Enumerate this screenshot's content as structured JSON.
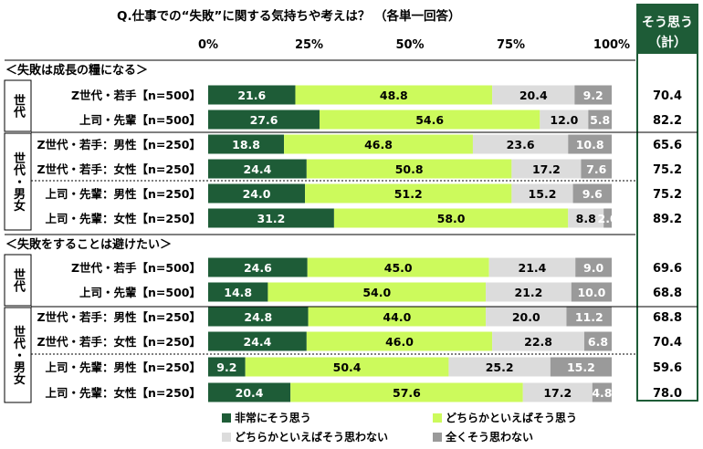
{
  "chart_data": {
    "type": "bar",
    "stacked": true,
    "orientation": "horizontal",
    "title": "Q.仕事での“失敗”に関する気持ちや考えは？ （各単一回答）",
    "ticks": [
      "0%",
      "25%",
      "50%",
      "75%",
      "100%"
    ],
    "xlim": [
      0,
      100
    ],
    "total_header": [
      "そう思う",
      "（計）"
    ],
    "colors": [
      "#1e5c37",
      "#ccfa5c",
      "#dcdcdc",
      "#9a9a9a"
    ],
    "legend": [
      "非常にそう思う",
      "どちらかといえばそう思う",
      "どちらかといえばそう思わない",
      "全くそう思わない"
    ],
    "sections": [
      {
        "title": "＜失敗は成長の糧になる＞",
        "groups": [
          {
            "label": "世代",
            "rows": [
              {
                "label": "Z世代・若手【n=500】",
                "values": [
                  21.6,
                  48.8,
                  20.4,
                  9.2
                ],
                "value_labels": [
                  "21.6",
                  "48.8",
                  "20.4",
                  "9.2"
                ],
                "total": "70.4"
              },
              {
                "label": "上司・先輩【n=500】",
                "values": [
                  27.6,
                  54.6,
                  12.0,
                  5.8
                ],
                "value_labels": [
                  "27.6",
                  "54.6",
                  "12.0",
                  "5.8"
                ],
                "total": "82.2"
              }
            ]
          },
          {
            "label": "世代・男女",
            "rows": [
              {
                "label": "Z世代・若手：男性【n=250】",
                "values": [
                  18.8,
                  46.8,
                  23.6,
                  10.8
                ],
                "value_labels": [
                  "18.8",
                  "46.8",
                  "23.6",
                  "10.8"
                ],
                "total": "65.6"
              },
              {
                "label": "Z世代・若手：女性【n=250】",
                "values": [
                  24.4,
                  50.8,
                  17.2,
                  7.6
                ],
                "value_labels": [
                  "24.4",
                  "50.8",
                  "17.2",
                  "7.6"
                ],
                "total": "75.2"
              },
              {
                "label": "上司・先輩：男性【n=250】",
                "values": [
                  24.0,
                  51.2,
                  15.2,
                  9.6
                ],
                "value_labels": [
                  "24.0",
                  "51.2",
                  "15.2",
                  "9.6"
                ],
                "total": "75.2"
              },
              {
                "label": "上司・先輩：女性【n=250】",
                "values": [
                  31.2,
                  58.0,
                  8.8,
                  2.0
                ],
                "value_labels": [
                  "31.2",
                  "58.0",
                  "8.8",
                  "2.0"
                ],
                "total": "89.2"
              }
            ]
          }
        ]
      },
      {
        "title": "＜失敗をすることは避けたい＞",
        "groups": [
          {
            "label": "世代",
            "rows": [
              {
                "label": "Z世代・若手【n=500】",
                "values": [
                  24.6,
                  45.0,
                  21.4,
                  9.0
                ],
                "value_labels": [
                  "24.6",
                  "45.0",
                  "21.4",
                  "9.0"
                ],
                "total": "69.6"
              },
              {
                "label": "上司・先輩【n=500】",
                "values": [
                  14.8,
                  54.0,
                  21.2,
                  10.0
                ],
                "value_labels": [
                  "14.8",
                  "54.0",
                  "21.2",
                  "10.0"
                ],
                "total": "68.8"
              }
            ]
          },
          {
            "label": "世代・男女",
            "rows": [
              {
                "label": "Z世代・若手：男性【n=250】",
                "values": [
                  24.8,
                  44.0,
                  20.0,
                  11.2
                ],
                "value_labels": [
                  "24.8",
                  "44.0",
                  "20.0",
                  "11.2"
                ],
                "total": "68.8"
              },
              {
                "label": "Z世代・若手：女性【n=250】",
                "values": [
                  24.4,
                  46.0,
                  22.8,
                  6.8
                ],
                "value_labels": [
                  "24.4",
                  "46.0",
                  "22.8",
                  "6.8"
                ],
                "total": "70.4"
              },
              {
                "label": "上司・先輩：男性【n=250】",
                "values": [
                  9.2,
                  50.4,
                  25.2,
                  15.2
                ],
                "value_labels": [
                  "9.2",
                  "50.4",
                  "25.2",
                  "15.2"
                ],
                "total": "59.6"
              },
              {
                "label": "上司・先輩：女性【n=250】",
                "values": [
                  20.4,
                  57.6,
                  17.2,
                  4.8
                ],
                "value_labels": [
                  "20.4",
                  "57.6",
                  "17.2",
                  "4.8"
                ],
                "total": "78.0"
              }
            ]
          }
        ]
      }
    ]
  }
}
